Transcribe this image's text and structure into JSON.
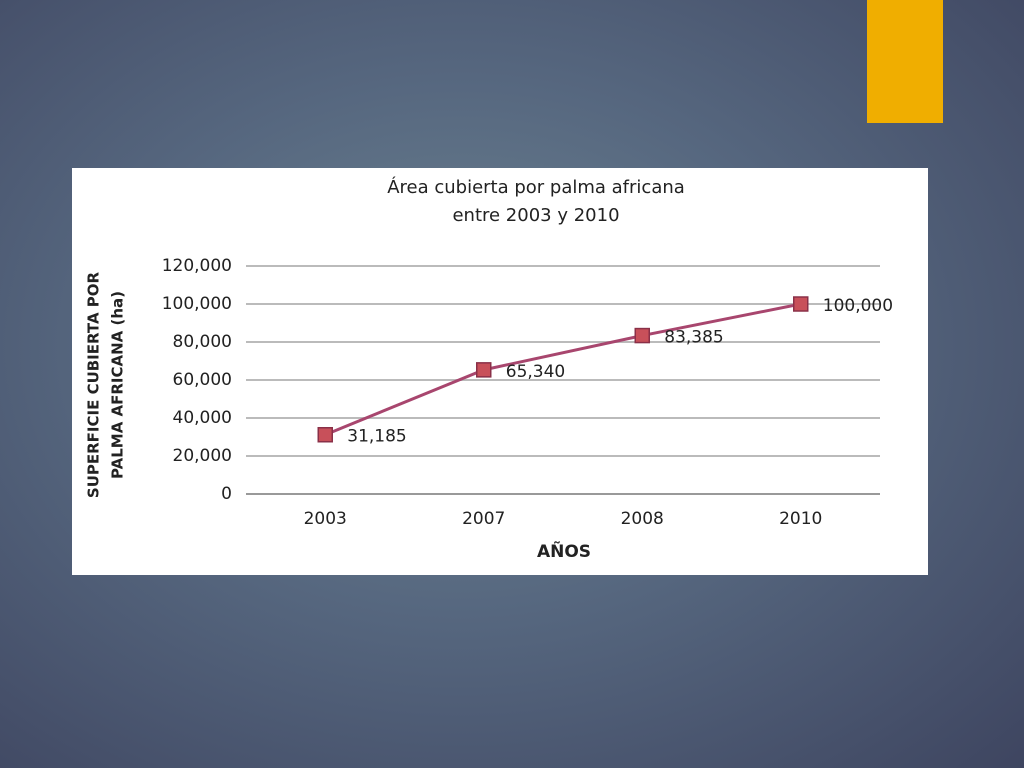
{
  "chart_data": {
    "type": "line",
    "title": [
      "Área cubierta por palma africana",
      "entre 2003 y 2010"
    ],
    "ylabel": [
      "SUPERFICIE CUBIERTA POR",
      "PALMA AFRICANA (ha)"
    ],
    "xlabel": "AÑOS",
    "categories": [
      "2003",
      "2007",
      "2008",
      "2010"
    ],
    "values": [
      31185,
      65340,
      83385,
      100000
    ],
    "value_labels": [
      "31,185",
      "65,340",
      "83,385",
      "100,000"
    ],
    "color": "#a8466e",
    "marker_color": "#c8505a",
    "ylim": [
      0,
      120000
    ],
    "yticks": [
      0,
      {
        "value": 20000,
        "label": "20,000"
      },
      {
        "value": 40000,
        "label": "40,000"
      },
      {
        "value": 60000,
        "label": "60,000"
      },
      {
        "value": 80000,
        "label": "80,000"
      },
      {
        "value": 100000,
        "label": "100,000"
      },
      {
        "value": 120000,
        "label": "120,000"
      }
    ],
    "grid": true
  }
}
